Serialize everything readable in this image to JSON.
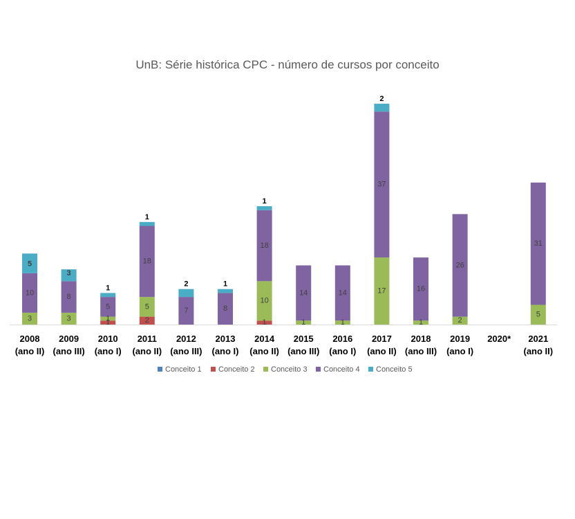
{
  "chart_data": {
    "type": "bar",
    "stacked": true,
    "title": "UnB: Série histórica CPC - número de cursos por conceito",
    "categories": [
      [
        "2008",
        "(ano II)"
      ],
      [
        "2009",
        "(ano III)"
      ],
      [
        "2010",
        "(ano I)"
      ],
      [
        "2011",
        "(ano II)"
      ],
      [
        "2012",
        "(ano III)"
      ],
      [
        "2013",
        "(ano I)"
      ],
      [
        "2014",
        "(ano II)"
      ],
      [
        "2015",
        "(ano III)"
      ],
      [
        "2016",
        "(ano I)"
      ],
      [
        "2017",
        "(ano II)"
      ],
      [
        "2018",
        "(ano III)"
      ],
      [
        "2019",
        "(ano I)"
      ],
      [
        "2020*",
        ""
      ],
      [
        "2021",
        "(ano II)"
      ]
    ],
    "series": [
      {
        "name": "Conceito 1",
        "color": "#4F81BD",
        "values": [
          0,
          0,
          0,
          0,
          0,
          0,
          0,
          0,
          0,
          0,
          0,
          0,
          0,
          0
        ]
      },
      {
        "name": "Conceito 2",
        "color": "#C0504D",
        "values": [
          0,
          0,
          1,
          2,
          0,
          0,
          1,
          0,
          0,
          0,
          0,
          0,
          0,
          0
        ]
      },
      {
        "name": "Conceito 3",
        "color": "#9BBB59",
        "values": [
          3,
          3,
          1,
          5,
          0,
          0,
          10,
          1,
          1,
          17,
          1,
          2,
          0,
          5
        ]
      },
      {
        "name": "Conceito 4",
        "color": "#8064A2",
        "values": [
          10,
          8,
          5,
          18,
          7,
          8,
          18,
          14,
          14,
          37,
          16,
          26,
          0,
          31
        ]
      },
      {
        "name": "Conceito 5",
        "color": "#4BACC6",
        "values": [
          5,
          3,
          1,
          1,
          2,
          1,
          1,
          0,
          0,
          2,
          0,
          0,
          0,
          0
        ]
      }
    ],
    "legend_position": "bottom",
    "grid": false
  }
}
